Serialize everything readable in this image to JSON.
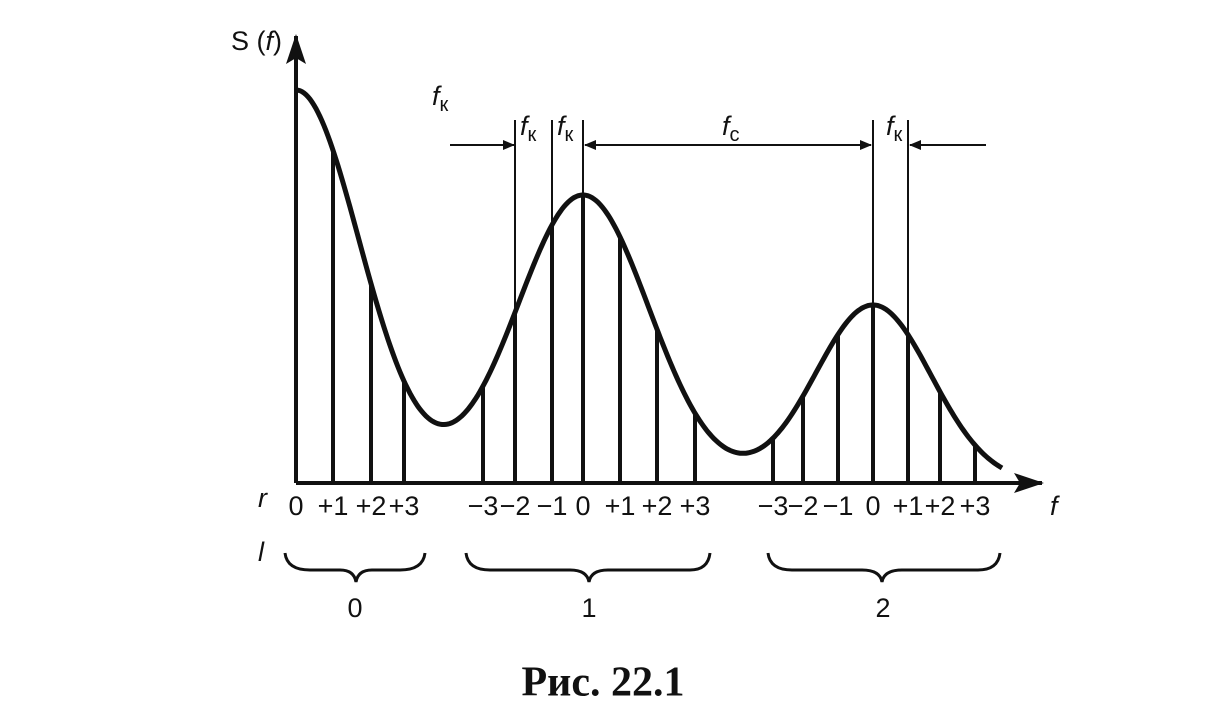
{
  "diagram": {
    "y_axis_label": [
      "S (",
      "f",
      ")"
    ],
    "x_axis_label": "f",
    "row_r_label": "r",
    "row_l_label": "l",
    "annotations": [
      {
        "main": "f",
        "sub": "к"
      },
      {
        "main": "f",
        "sub": "к"
      },
      {
        "main": "f",
        "sub": "к"
      },
      {
        "main": "f",
        "sub": "c"
      },
      {
        "main": "f",
        "sub": "к"
      }
    ],
    "r_values": [
      [
        "0",
        "+1",
        "+2",
        "+3"
      ],
      [
        "−3",
        "−2",
        "−1",
        "0",
        "+1",
        "+2",
        "+3"
      ],
      [
        "−3",
        "−2",
        "−1",
        "0",
        "+1",
        "+2",
        "+3"
      ]
    ],
    "l_values": [
      "0",
      "1",
      "2"
    ]
  },
  "caption": "Рис. 22.1"
}
